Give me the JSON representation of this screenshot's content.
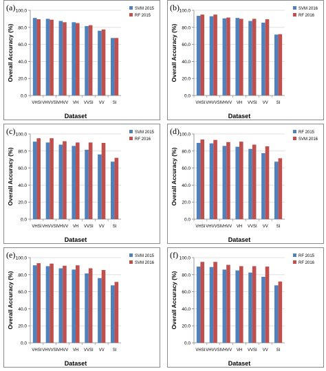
{
  "colors": {
    "blue": "#4F81BD",
    "red": "#C0504D",
    "axis": "#7f7f7f",
    "grid": "#d9d9d9"
  },
  "chart_data": [
    {
      "panel_label": "(a)",
      "type": "bar",
      "categories": [
        "VHSI",
        "VHVVSI",
        "VHVV",
        "VH",
        "VVSI",
        "VV",
        "SI"
      ],
      "series": [
        {
          "name": "SVM 2015",
          "values": [
            91.0,
            90.0,
            87.5,
            86.0,
            81.5,
            76.0,
            67.5
          ]
        },
        {
          "name": "RF 2015",
          "values": [
            89.5,
            89.0,
            86.0,
            85.0,
            82.5,
            77.5,
            67.5
          ]
        }
      ],
      "xlabel": "Dataset",
      "ylabel": "Overall Accuracy (%)",
      "ylim": [
        0,
        100
      ],
      "yticks": [
        "0.0",
        "20.0",
        "40.0",
        "60.0",
        "80.0",
        "100.0"
      ],
      "legend": "top-right"
    },
    {
      "panel_label": "(b)",
      "type": "bar",
      "categories": [
        "VHSI",
        "VHVVSI",
        "VHVV",
        "VH",
        "VVSI",
        "VV",
        "SI"
      ],
      "series": [
        {
          "name": "SVM 2016",
          "values": [
            93.5,
            93.0,
            90.5,
            91.0,
            87.5,
            85.5,
            71.5
          ]
        },
        {
          "name": "RF 2016",
          "values": [
            95.0,
            95.0,
            91.5,
            90.0,
            90.0,
            89.5,
            72.0
          ]
        }
      ],
      "xlabel": "Dataset",
      "ylabel": "Overall Accuracy (%)",
      "ylim": [
        0,
        100
      ],
      "yticks": [
        "0.0",
        "20.0",
        "40.0",
        "60.0",
        "80.0",
        "100.0"
      ],
      "legend": "top-right"
    },
    {
      "panel_label": "(c)",
      "type": "bar",
      "categories": [
        "VHSI",
        "VHVVSI",
        "VHVV",
        "VH",
        "VVSI",
        "VV",
        "SI"
      ],
      "series": [
        {
          "name": "SVM 2015",
          "values": [
            91.0,
            90.0,
            87.5,
            86.0,
            81.5,
            76.0,
            67.5
          ]
        },
        {
          "name": "RF 2016",
          "values": [
            95.0,
            95.0,
            91.5,
            90.0,
            90.0,
            89.5,
            72.0
          ]
        }
      ],
      "xlabel": "Dataset",
      "ylabel": "Overall Accuracy (%)",
      "ylim": [
        0,
        100
      ],
      "yticks": [
        "0.0",
        "20.0",
        "40.0",
        "60.0",
        "80.0",
        "100.0"
      ],
      "legend": "top-right"
    },
    {
      "panel_label": "(d)",
      "type": "bar",
      "categories": [
        "VHSI",
        "VHVVSI",
        "VHVV",
        "VH",
        "VVSI",
        "VV",
        "SI"
      ],
      "series": [
        {
          "name": "RF 2015",
          "values": [
            89.5,
            89.0,
            86.0,
            85.0,
            82.5,
            77.5,
            67.5
          ]
        },
        {
          "name": "SVM 2016",
          "values": [
            93.5,
            93.0,
            90.5,
            91.0,
            87.5,
            85.5,
            71.5
          ]
        }
      ],
      "xlabel": "Dataset",
      "ylabel": "Overall Accuracy (%)",
      "ylim": [
        0,
        100
      ],
      "yticks": [
        "0.0",
        "20.0",
        "40.0",
        "60.0",
        "80.0",
        "100.0"
      ],
      "legend": "top-right"
    },
    {
      "panel_label": "(e)",
      "type": "bar",
      "categories": [
        "VHSI",
        "VHVVSI",
        "VHVV",
        "VH",
        "VVSI",
        "VV",
        "SI"
      ],
      "series": [
        {
          "name": "SVM 2015",
          "values": [
            91.0,
            90.0,
            87.5,
            86.0,
            81.5,
            76.0,
            67.5
          ]
        },
        {
          "name": "SVM 2016",
          "values": [
            93.5,
            93.0,
            90.5,
            91.0,
            87.5,
            85.5,
            71.5
          ]
        }
      ],
      "xlabel": "Dataset",
      "ylabel": "Overall Accuracy (%)",
      "ylim": [
        0,
        100
      ],
      "yticks": [
        "0.0",
        "20.0",
        "40.0",
        "60.0",
        "80.0",
        "100.0"
      ],
      "legend": "top-right"
    },
    {
      "panel_label": "(f)",
      "type": "bar",
      "categories": [
        "VHSI",
        "VHVVSI",
        "VHVV",
        "VH",
        "VVSI",
        "VV",
        "SI"
      ],
      "series": [
        {
          "name": "RF 2015",
          "values": [
            89.5,
            89.0,
            86.0,
            85.0,
            82.5,
            77.5,
            67.5
          ]
        },
        {
          "name": "RF 2016",
          "values": [
            95.0,
            95.0,
            91.5,
            90.0,
            90.0,
            89.5,
            72.0
          ]
        }
      ],
      "xlabel": "Dataset",
      "ylabel": "Overall Accuracy (%)",
      "ylim": [
        0,
        100
      ],
      "yticks": [
        "0.0",
        "20.0",
        "40.0",
        "60.0",
        "80.0",
        "100.0"
      ],
      "legend": "top-right"
    }
  ]
}
